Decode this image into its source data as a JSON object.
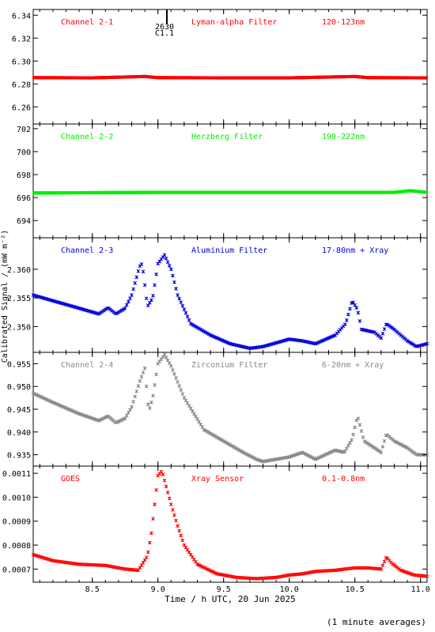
{
  "xaxis": {
    "label": "Time / h UTC, 20 Jun 2025",
    "range": [
      8.05,
      11.05
    ],
    "ticks": [
      "8.5",
      "9.0",
      "9.5",
      "10.0",
      "10.5",
      "11.0"
    ],
    "tick_values": [
      8.5,
      9.0,
      9.5,
      10.0,
      10.5,
      11.0
    ]
  },
  "ylabel": "Calibrated Signal / (mW m⁻²)",
  "footnote": "(1 minute averages)",
  "flare_marker": {
    "time": 9.05,
    "peak_time": "2630",
    "class": "C1.1"
  },
  "chart_data": [
    {
      "type": "scatter",
      "channel": "Channel 2-1",
      "filter": "Lyman-alpha Filter",
      "band": "120-123nm",
      "color": "#ff0000",
      "ylim": [
        6.245,
        6.345
      ],
      "yticks": [
        "6.26",
        "6.28",
        "6.30",
        "6.32",
        "6.34"
      ],
      "ytick_values": [
        6.26,
        6.28,
        6.3,
        6.32,
        6.34
      ],
      "x": [
        8.05,
        8.5,
        8.9,
        9.0,
        9.5,
        10.0,
        10.5,
        10.6,
        11.05
      ],
      "y": [
        6.2855,
        6.2853,
        6.2865,
        6.2855,
        6.2853,
        6.2853,
        6.2865,
        6.2855,
        6.2853
      ]
    },
    {
      "type": "scatter",
      "channel": "Channel 2-2",
      "filter": "Herzberg Filter",
      "band": "190-222nm",
      "color": "#00ee00",
      "ylim": [
        692.5,
        702.4
      ],
      "yticks": [
        "694",
        "696",
        "698",
        "700",
        "702"
      ],
      "ytick_values": [
        694,
        696,
        698,
        700,
        702
      ],
      "x": [
        8.05,
        9.0,
        10.0,
        10.8,
        10.92,
        11.05
      ],
      "y": [
        696.4,
        696.45,
        696.45,
        696.45,
        696.6,
        696.45
      ]
    },
    {
      "type": "scatter",
      "channel": "Channel 2-3",
      "filter": "Aluminium Filter",
      "band": "17-80nm + Xray",
      "color": "#0000dd",
      "ylim": [
        2.3455,
        2.3655
      ],
      "yticks": [
        "2.350",
        "2.355",
        "2.360"
      ],
      "ytick_values": [
        2.35,
        2.355,
        2.36
      ],
      "x": [
        8.05,
        8.2,
        8.4,
        8.55,
        8.62,
        8.68,
        8.75,
        8.8,
        8.86,
        8.88,
        8.92,
        8.96,
        9.0,
        9.05,
        9.1,
        9.15,
        9.25,
        9.4,
        9.55,
        9.7,
        9.8,
        10.0,
        10.1,
        10.2,
        10.35,
        10.43,
        10.48,
        10.52,
        10.55,
        10.65,
        10.7,
        10.74,
        10.8,
        10.9,
        10.97,
        11.05
      ],
      "y": [
        2.3555,
        2.3545,
        2.3532,
        2.3522,
        2.3533,
        2.3522,
        2.3532,
        2.3555,
        2.3605,
        2.361,
        2.3535,
        2.355,
        2.361,
        2.3625,
        2.36,
        2.3555,
        2.3505,
        2.3485,
        2.347,
        2.3462,
        2.3465,
        2.3478,
        2.3475,
        2.347,
        2.3485,
        2.3505,
        2.3545,
        2.353,
        2.3495,
        2.349,
        2.348,
        2.3505,
        2.3495,
        2.3475,
        2.3465,
        2.347
      ]
    },
    {
      "type": "scatter",
      "channel": "Channel 2-4",
      "filter": "Zirconium Filter",
      "band": "6-20nm + Xray",
      "color": "#888888",
      "ylim": [
        0.9325,
        0.9575
      ],
      "yticks": [
        "0.935",
        "0.940",
        "0.945",
        "0.950",
        "0.955"
      ],
      "ytick_values": [
        0.935,
        0.94,
        0.945,
        0.95,
        0.955
      ],
      "x": [
        8.05,
        8.2,
        8.4,
        8.55,
        8.62,
        8.68,
        8.75,
        8.8,
        8.86,
        8.9,
        8.93,
        8.96,
        9.0,
        9.05,
        9.1,
        9.2,
        9.35,
        9.5,
        9.65,
        9.75,
        9.8,
        10.0,
        10.1,
        10.2,
        10.35,
        10.42,
        10.48,
        10.52,
        10.57,
        10.65,
        10.7,
        10.74,
        10.8,
        10.9,
        10.97,
        11.05
      ],
      "y": [
        0.9485,
        0.9465,
        0.944,
        0.9425,
        0.9435,
        0.942,
        0.943,
        0.9455,
        0.951,
        0.954,
        0.9445,
        0.9475,
        0.955,
        0.957,
        0.9545,
        0.9475,
        0.9405,
        0.938,
        0.9355,
        0.934,
        0.9335,
        0.9345,
        0.9355,
        0.934,
        0.936,
        0.9355,
        0.9385,
        0.9435,
        0.938,
        0.9365,
        0.9355,
        0.9395,
        0.938,
        0.9365,
        0.935,
        0.935
      ]
    },
    {
      "type": "scatter",
      "channel": "GOES",
      "filter": "Xray Sensor",
      "band": "0.1-0.8nm",
      "color": "#ff0000",
      "ylim": [
        0.000645,
        0.00113
      ],
      "yticks": [
        "0.0007",
        "0.0008",
        "0.0009",
        "0.0010",
        "0.0011"
      ],
      "ytick_values": [
        0.0007,
        0.0008,
        0.0009,
        0.001,
        0.0011
      ],
      "x": [
        8.05,
        8.2,
        8.4,
        8.6,
        8.75,
        8.85,
        8.92,
        8.95,
        9.0,
        9.03,
        9.06,
        9.1,
        9.15,
        9.2,
        9.3,
        9.45,
        9.6,
        9.75,
        9.9,
        10.0,
        10.1,
        10.2,
        10.35,
        10.5,
        10.6,
        10.7,
        10.74,
        10.78,
        10.85,
        10.95,
        11.05
      ],
      "y": [
        0.00076,
        0.000735,
        0.00072,
        0.000715,
        0.0007,
        0.000695,
        0.000755,
        0.00085,
        0.00109,
        0.00111,
        0.00105,
        0.00097,
        0.00088,
        0.0008,
        0.00072,
        0.00068,
        0.000665,
        0.00066,
        0.000665,
        0.000675,
        0.00068,
        0.00069,
        0.000695,
        0.000705,
        0.000705,
        0.0007,
        0.00075,
        0.000725,
        0.000695,
        0.000675,
        0.00067
      ]
    }
  ]
}
